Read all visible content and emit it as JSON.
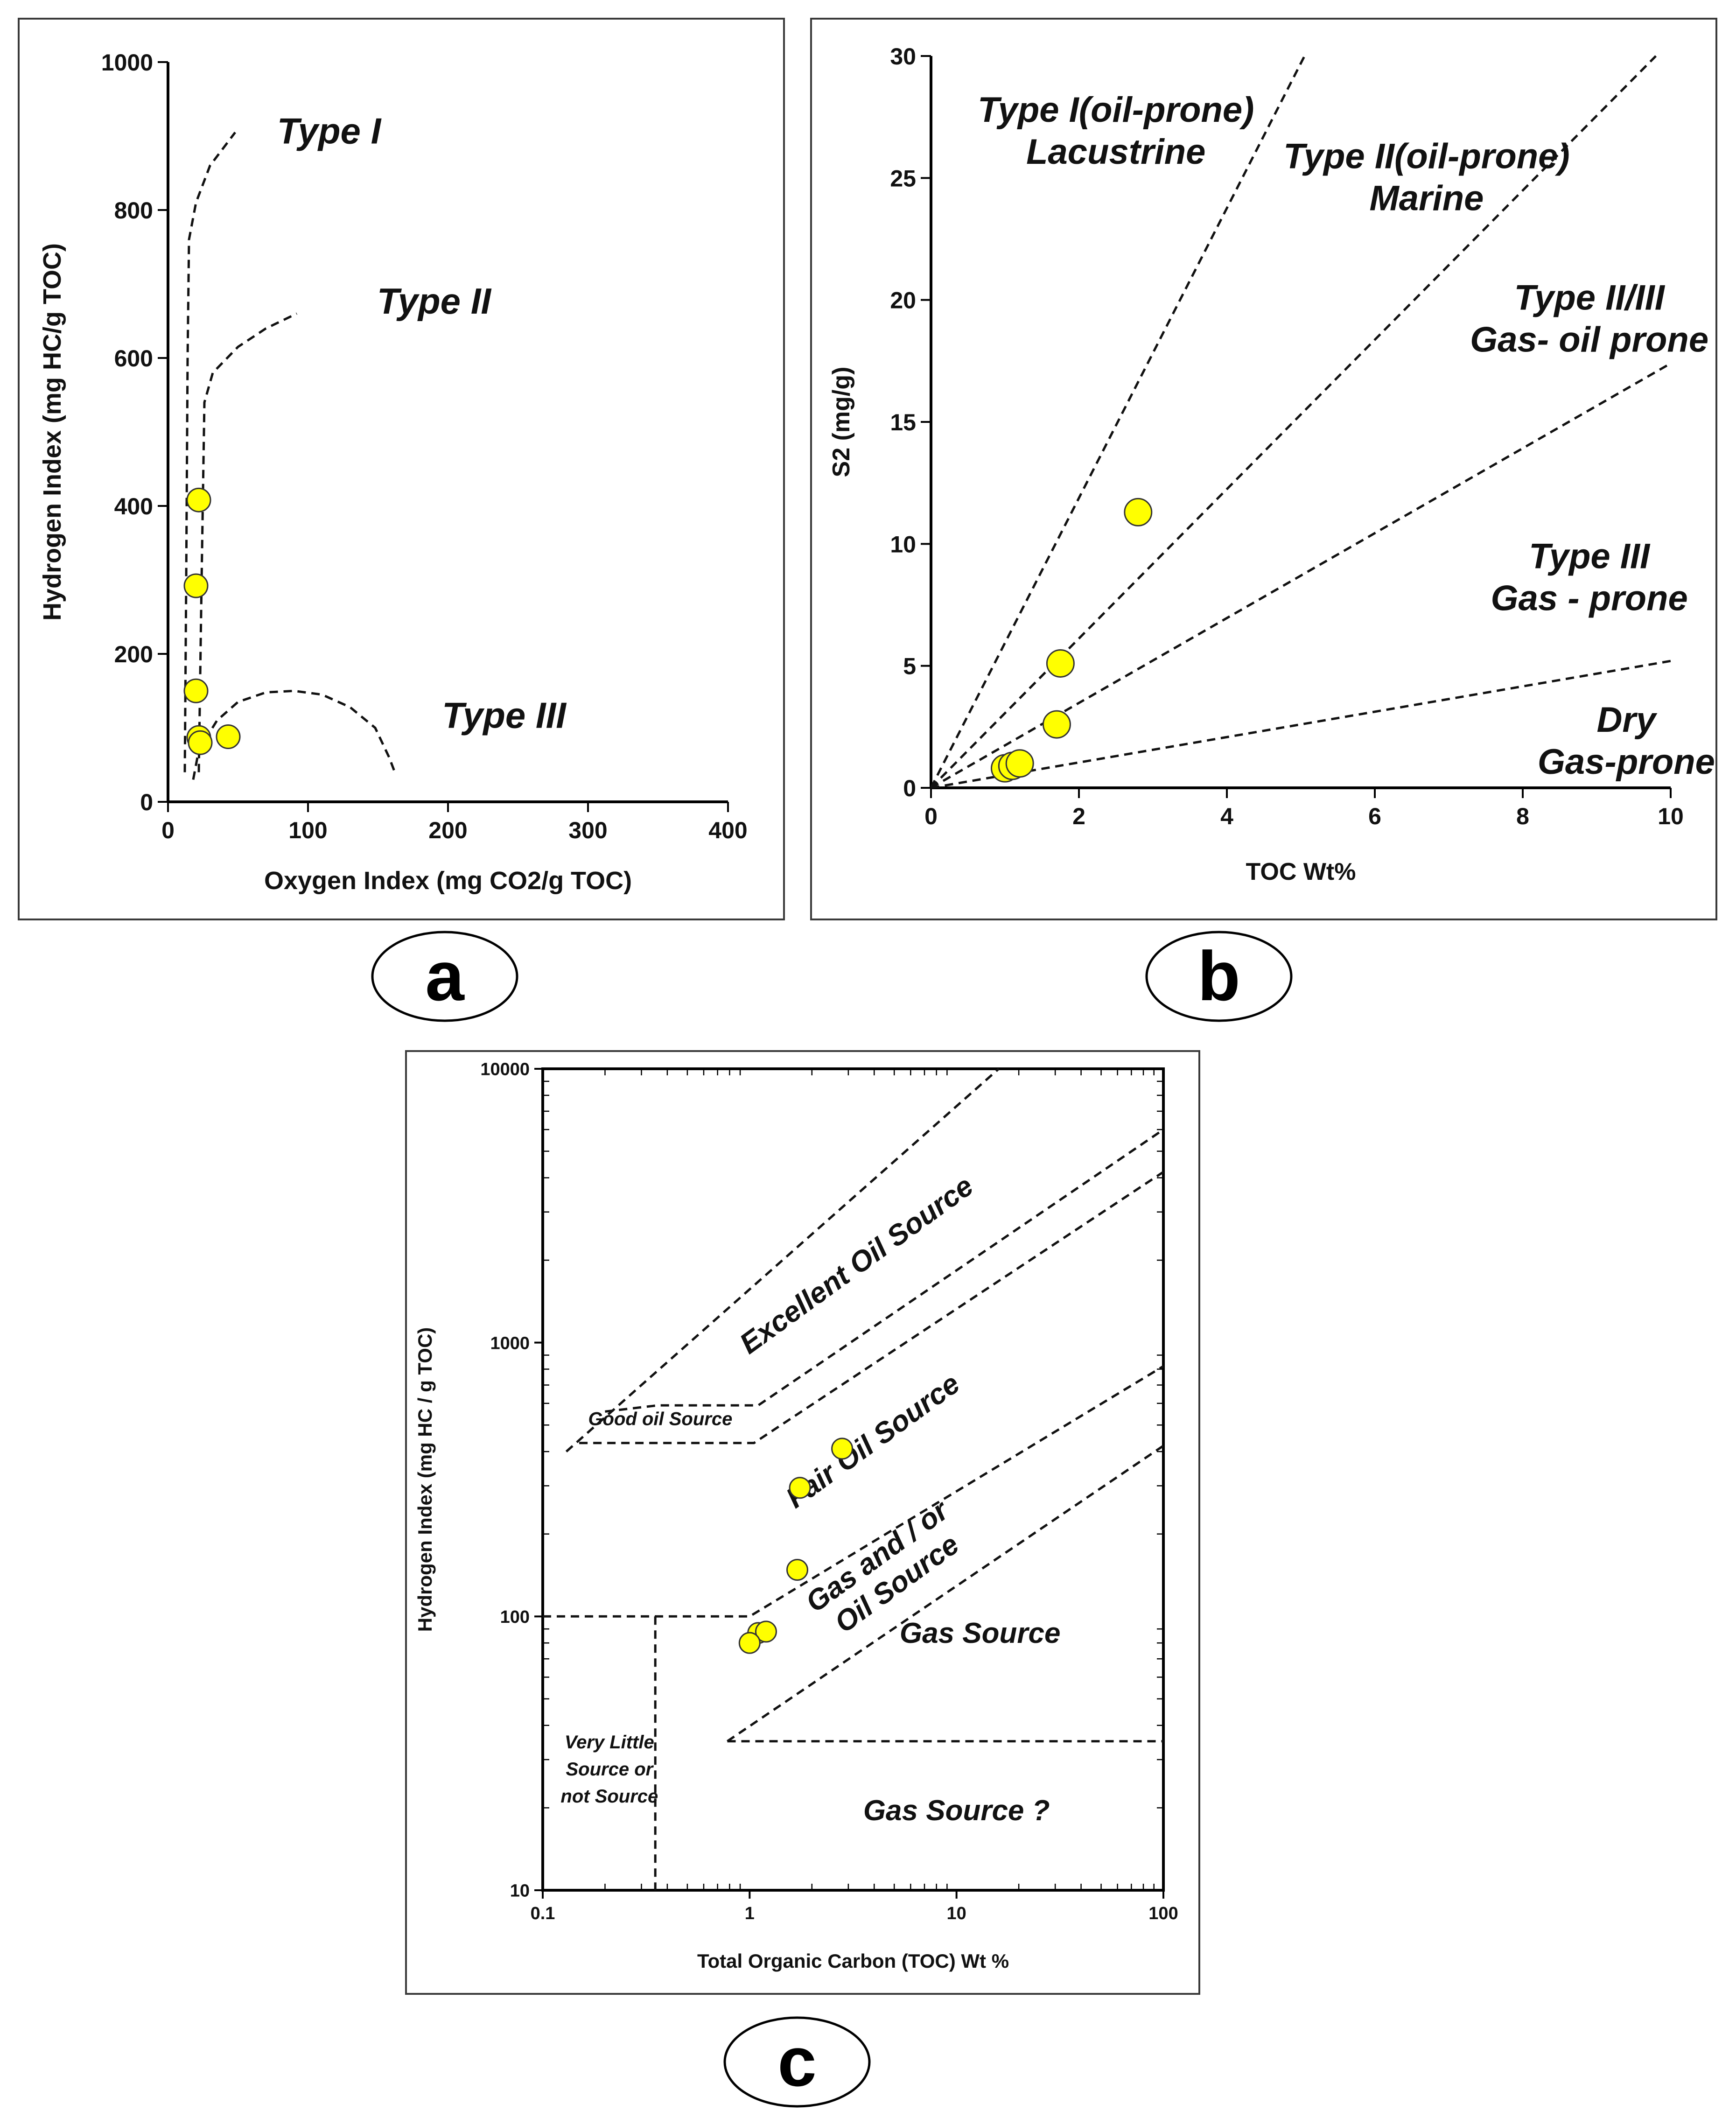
{
  "figure": {
    "panel_labels": [
      "a",
      "b",
      "c"
    ]
  },
  "chart_data": [
    {
      "id": "a",
      "type": "scatter",
      "xlabel": "Oxygen Index (mg CO2/g TOC)",
      "ylabel": "Hydrogen Index (mg HC/g TOC)",
      "xlim": [
        0,
        400
      ],
      "ylim": [
        0,
        1000
      ],
      "xticks": [
        0,
        100,
        200,
        300,
        400
      ],
      "yticks": [
        0,
        200,
        400,
        600,
        800,
        1000
      ],
      "series": [
        {
          "name": "samples",
          "x": [
            22,
            20,
            20,
            22,
            23,
            43
          ],
          "y": [
            408,
            292,
            150,
            87,
            80,
            88
          ]
        }
      ],
      "boundaries": [
        {
          "name": "type-i-curve",
          "x": [
            18,
            16,
            15,
            14,
            14,
            13,
            12
          ],
          "y": [
            40,
            200,
            400,
            600,
            760,
            820,
            50
          ],
          "xy_line": [
            [
              12,
              40
            ],
            [
              13,
              300
            ],
            [
              14,
              600
            ],
            [
              15,
              760
            ],
            [
              20,
              810
            ],
            [
              30,
              860
            ],
            [
              48,
              905
            ]
          ]
        },
        {
          "name": "type-ii-curve",
          "xy_line": [
            [
              22,
              40
            ],
            [
              24,
              300
            ],
            [
              26,
              540
            ],
            [
              32,
              580
            ],
            [
              50,
              615
            ],
            [
              70,
              640
            ],
            [
              92,
              660
            ]
          ]
        },
        {
          "name": "type-iii-curve",
          "xy_line": [
            [
              18,
              30
            ],
            [
              22,
              70
            ],
            [
              35,
              110
            ],
            [
              50,
              135
            ],
            [
              70,
              148
            ],
            [
              90,
              150
            ],
            [
              110,
              145
            ],
            [
              130,
              128
            ],
            [
              148,
              100
            ],
            [
              158,
              60
            ],
            [
              162,
              40
            ]
          ]
        }
      ],
      "annotations": [
        {
          "text": "Type I",
          "x": 115,
          "y": 890
        },
        {
          "text": "Type II",
          "x": 190,
          "y": 660
        },
        {
          "text": "Type III",
          "x": 240,
          "y": 100
        }
      ]
    },
    {
      "id": "b",
      "type": "scatter",
      "xlabel": "TOC Wt%",
      "ylabel": "S2 (mg/g)",
      "xlim": [
        0,
        10
      ],
      "ylim": [
        0,
        30
      ],
      "xticks": [
        0,
        2,
        4,
        6,
        8,
        10
      ],
      "yticks": [
        0,
        5,
        10,
        15,
        20,
        25,
        30
      ],
      "series": [
        {
          "name": "samples",
          "x": [
            1.0,
            1.1,
            1.2,
            1.7,
            1.75,
            2.8
          ],
          "y": [
            0.8,
            0.9,
            1.0,
            2.6,
            5.1,
            11.3
          ]
        }
      ],
      "boundaries": [
        {
          "name": "line-type-i",
          "xy_line": [
            [
              0,
              0
            ],
            [
              5.05,
              30
            ]
          ]
        },
        {
          "name": "line-type-ii",
          "xy_line": [
            [
              0,
              0
            ],
            [
              9.8,
              30
            ]
          ]
        },
        {
          "name": "line-type-ii-iii",
          "xy_line": [
            [
              0,
              0
            ],
            [
              10,
              17.4
            ]
          ]
        },
        {
          "name": "line-type-iii",
          "xy_line": [
            [
              0,
              0
            ],
            [
              10,
              5.2
            ]
          ]
        }
      ],
      "annotations": [
        {
          "lines": [
            "Type I(oil-prone)",
            "Lacustrine"
          ],
          "x": 2.5,
          "y": 27.3
        },
        {
          "lines": [
            "Type II(oil-prone)",
            "Marine"
          ],
          "x": 6.7,
          "y": 25.4
        },
        {
          "lines": [
            "Type II/III",
            "Gas- oil prone"
          ],
          "x": 8.9,
          "y": 19.6
        },
        {
          "lines": [
            "Type III",
            "Gas - prone"
          ],
          "x": 8.9,
          "y": 9.0
        },
        {
          "lines": [
            "Dry",
            "Gas-prone"
          ],
          "x": 9.4,
          "y": 2.3
        }
      ]
    },
    {
      "id": "c",
      "type": "scatter",
      "xscale": "log",
      "yscale": "log",
      "xlabel": "Total Organic Carbon (TOC) Wt %",
      "ylabel": "Hydrogen Index (mg HC / g TOC)",
      "xlim": [
        0.1,
        100
      ],
      "ylim": [
        10,
        10000
      ],
      "xticks": [
        0.1,
        1,
        10,
        100
      ],
      "xtick_labels": [
        "0.1",
        "1",
        "10",
        "100"
      ],
      "yticks": [
        10,
        100,
        1000,
        10000
      ],
      "ytick_labels": [
        "10",
        "100",
        "1000",
        "10000"
      ],
      "series": [
        {
          "name": "samples",
          "x": [
            2.8,
            1.75,
            1.7,
            1.1,
            1.2,
            1.0
          ],
          "y": [
            410,
            295,
            148,
            87,
            88,
            80
          ]
        }
      ],
      "boundaries": [
        {
          "name": "excellent-upper",
          "xy_line": [
            [
              0.13,
              400
            ],
            [
              16,
              10000
            ]
          ]
        },
        {
          "name": "good-oil-step",
          "xy_line": [
            [
              0.2,
              560
            ],
            [
              0.36,
              590
            ],
            [
              1.1,
              590
            ],
            [
              100,
              6000
            ]
          ]
        },
        {
          "name": "good-oil-lower",
          "xy_line": [
            [
              0.15,
              430
            ],
            [
              1.05,
              430
            ],
            [
              100,
              4200
            ]
          ]
        },
        {
          "name": "fair-lower",
          "xy_line": [
            [
              0.1,
              100
            ],
            [
              1.0,
              100
            ],
            [
              100,
              820
            ]
          ]
        },
        {
          "name": "gas-oil-lower",
          "xy_line": [
            [
              0.78,
              35
            ],
            [
              100,
              420
            ]
          ]
        },
        {
          "name": "gas-source-floor",
          "xy_line": [
            [
              0.78,
              35
            ],
            [
              100,
              35
            ]
          ]
        },
        {
          "name": "very-little-divider",
          "xy_line": [
            [
              0.35,
              100
            ],
            [
              0.35,
              10
            ]
          ]
        }
      ],
      "annotations": [
        {
          "lines": [
            "Excellent Oil Source"
          ],
          "x": 3.5,
          "y": 1800,
          "rotate": -36
        },
        {
          "lines": [
            "Good oil Source"
          ],
          "x": 0.37,
          "y": 500
        },
        {
          "lines": [
            "Fair Oil Source"
          ],
          "x": 4.2,
          "y": 410,
          "rotate": -36
        },
        {
          "lines": [
            "Gas and / or",
            "Oil Source"
          ],
          "x": 4.4,
          "y": 155,
          "rotate": -36
        },
        {
          "lines": [
            "Gas Source"
          ],
          "x": 13,
          "y": 80
        },
        {
          "lines": [
            "Gas Source ?"
          ],
          "x": 10,
          "y": 18
        },
        {
          "lines": [
            "Very Little",
            "Source or",
            "not Source"
          ],
          "x": 0.21,
          "y": 33
        }
      ]
    }
  ]
}
